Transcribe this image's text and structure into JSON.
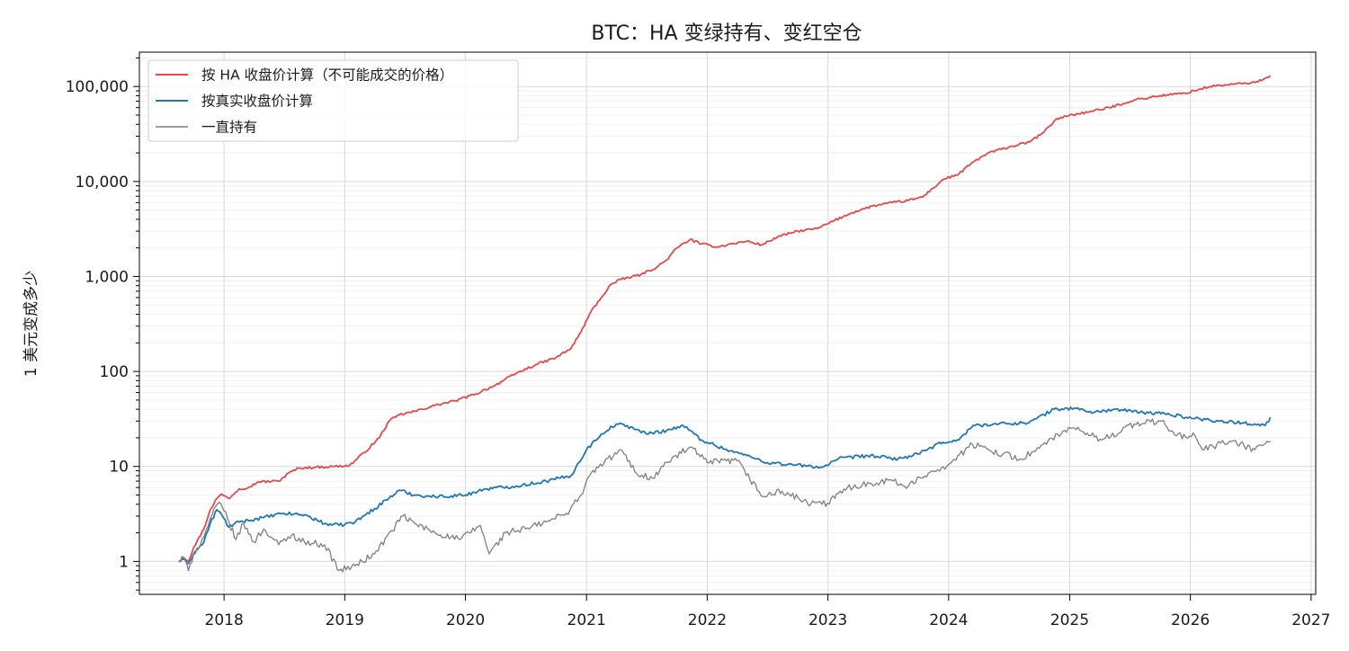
{
  "chart_data": {
    "type": "line",
    "title": "BTC：HA 变绿持有、变红空仓",
    "xlabel": "",
    "ylabel": "1 美元变成多少",
    "yscale": "log",
    "ylim": [
      0.45,
      230000
    ],
    "xlim": [
      "2017-04-20",
      "2027-01-15"
    ],
    "grid": true,
    "legend_position": "top-left",
    "x_ticks": [
      "2018",
      "2019",
      "2020",
      "2021",
      "2022",
      "2023",
      "2024",
      "2025",
      "2026",
      "2027"
    ],
    "y_ticks": [
      {
        "value": 1,
        "label": "1"
      },
      {
        "value": 10,
        "label": "10"
      },
      {
        "value": 100,
        "label": "100"
      },
      {
        "value": 1000,
        "label": "1,000"
      },
      {
        "value": 10000,
        "label": "10,000"
      },
      {
        "value": 100000,
        "label": "100,000"
      }
    ],
    "series": [
      {
        "name": "按 HA 收盘价计算（不可能成交的价格）",
        "color": "#e8474b",
        "points": [
          [
            "2017-08-17",
            1.0
          ],
          [
            "2017-09-01",
            1.1
          ],
          [
            "2017-09-15",
            1.0
          ],
          [
            "2017-10-01",
            1.4
          ],
          [
            "2017-11-01",
            2.2
          ],
          [
            "2017-11-20",
            3.5
          ],
          [
            "2017-12-10",
            4.6
          ],
          [
            "2017-12-25",
            5.1
          ],
          [
            "2018-01-15",
            4.6
          ],
          [
            "2018-02-15",
            5.8
          ],
          [
            "2018-03-15",
            6.0
          ],
          [
            "2018-04-15",
            6.9
          ],
          [
            "2018-06-15",
            7.0
          ],
          [
            "2018-07-15",
            8.5
          ],
          [
            "2018-08-15",
            9.6
          ],
          [
            "2018-10-01",
            9.8
          ],
          [
            "2018-12-01",
            10.0
          ],
          [
            "2019-01-15",
            10.2
          ],
          [
            "2019-03-01",
            14.0
          ],
          [
            "2019-04-15",
            20.0
          ],
          [
            "2019-05-15",
            30.0
          ],
          [
            "2019-06-15",
            35.0
          ],
          [
            "2019-08-01",
            38.0
          ],
          [
            "2019-10-01",
            44.0
          ],
          [
            "2019-12-01",
            49.0
          ],
          [
            "2020-02-01",
            58.0
          ],
          [
            "2020-04-01",
            72.0
          ],
          [
            "2020-06-01",
            95.0
          ],
          [
            "2020-08-01",
            118.0
          ],
          [
            "2020-10-01",
            140.0
          ],
          [
            "2020-11-15",
            175.0
          ],
          [
            "2020-12-15",
            260.0
          ],
          [
            "2021-01-15",
            430.0
          ],
          [
            "2021-02-15",
            600.0
          ],
          [
            "2021-03-15",
            820.0
          ],
          [
            "2021-04-15",
            930.0
          ],
          [
            "2021-06-15",
            1050.0
          ],
          [
            "2021-08-01",
            1250.0
          ],
          [
            "2021-09-01",
            1500.0
          ],
          [
            "2021-10-01",
            2000.0
          ],
          [
            "2021-11-10",
            2450.0
          ],
          [
            "2021-12-15",
            2200.0
          ],
          [
            "2022-02-01",
            2050.0
          ],
          [
            "2022-03-15",
            2200.0
          ],
          [
            "2022-05-01",
            2350.0
          ],
          [
            "2022-06-15",
            2150.0
          ],
          [
            "2022-08-01",
            2600.0
          ],
          [
            "2022-10-01",
            3000.0
          ],
          [
            "2022-12-01",
            3200.0
          ],
          [
            "2023-01-15",
            3800.0
          ],
          [
            "2023-03-15",
            4700.0
          ],
          [
            "2023-05-15",
            5500.0
          ],
          [
            "2023-07-15",
            6000.0
          ],
          [
            "2023-09-01",
            6300.0
          ],
          [
            "2023-10-15",
            6900.0
          ],
          [
            "2023-11-15",
            8500.0
          ],
          [
            "2023-12-15",
            10500.0
          ],
          [
            "2024-02-01",
            12000.0
          ],
          [
            "2024-03-15",
            16000.0
          ],
          [
            "2024-05-01",
            20000.0
          ],
          [
            "2024-07-01",
            23000.0
          ],
          [
            "2024-09-01",
            26000.0
          ],
          [
            "2024-10-15",
            33000.0
          ],
          [
            "2024-11-20",
            45000.0
          ],
          [
            "2025-01-01",
            50000.0
          ],
          [
            "2025-03-01",
            54000.0
          ],
          [
            "2025-05-01",
            60000.0
          ],
          [
            "2025-07-15",
            72000.0
          ],
          [
            "2025-10-01",
            80000.0
          ],
          [
            "2025-12-15",
            85000.0
          ],
          [
            "2026-03-01",
            100000.0
          ],
          [
            "2026-05-01",
            105000.0
          ],
          [
            "2026-07-15",
            110000.0
          ],
          [
            "2026-08-20",
            125000.0
          ],
          [
            "2026-08-31",
            130000.0
          ]
        ]
      },
      {
        "name": "按真实收盘价计算",
        "color": "#1f77b4",
        "points": [
          [
            "2017-08-17",
            1.0
          ],
          [
            "2017-09-01",
            1.05
          ],
          [
            "2017-09-15",
            0.95
          ],
          [
            "2017-10-01",
            1.2
          ],
          [
            "2017-11-01",
            1.6
          ],
          [
            "2017-11-20",
            2.5
          ],
          [
            "2017-12-10",
            3.5
          ],
          [
            "2017-12-25",
            3.1
          ],
          [
            "2018-01-15",
            2.3
          ],
          [
            "2018-02-15",
            2.6
          ],
          [
            "2018-03-15",
            2.7
          ],
          [
            "2018-05-01",
            2.9
          ],
          [
            "2018-07-01",
            3.2
          ],
          [
            "2018-09-01",
            3.1
          ],
          [
            "2018-11-01",
            2.5
          ],
          [
            "2018-12-15",
            2.4
          ],
          [
            "2019-02-01",
            2.6
          ],
          [
            "2019-04-01",
            3.6
          ],
          [
            "2019-06-15",
            5.6
          ],
          [
            "2019-08-01",
            5.0
          ],
          [
            "2019-10-01",
            4.8
          ],
          [
            "2020-01-01",
            5.0
          ],
          [
            "2020-03-01",
            5.8
          ],
          [
            "2020-06-01",
            6.2
          ],
          [
            "2020-09-01",
            7.0
          ],
          [
            "2020-11-15",
            8.0
          ],
          [
            "2021-01-01",
            15.0
          ],
          [
            "2021-02-15",
            22.0
          ],
          [
            "2021-04-01",
            28.0
          ],
          [
            "2021-05-15",
            26.0
          ],
          [
            "2021-07-01",
            22.0
          ],
          [
            "2021-09-01",
            24.0
          ],
          [
            "2021-10-20",
            27.0
          ],
          [
            "2021-12-15",
            19.0
          ],
          [
            "2022-03-01",
            15.0
          ],
          [
            "2022-05-01",
            13.0
          ],
          [
            "2022-07-01",
            11.0
          ],
          [
            "2022-09-01",
            10.5
          ],
          [
            "2022-12-15",
            9.8
          ],
          [
            "2023-02-01",
            12.0
          ],
          [
            "2023-05-01",
            13.0
          ],
          [
            "2023-08-01",
            12.0
          ],
          [
            "2023-10-01",
            13.5
          ],
          [
            "2023-12-15",
            18.0
          ],
          [
            "2024-02-01",
            19.0
          ],
          [
            "2024-03-15",
            27.0
          ],
          [
            "2024-06-01",
            28.0
          ],
          [
            "2024-09-01",
            29.0
          ],
          [
            "2024-11-15",
            40.0
          ],
          [
            "2025-01-15",
            41.0
          ],
          [
            "2025-03-15",
            37.0
          ],
          [
            "2025-05-15",
            40.0
          ],
          [
            "2025-08-01",
            37.0
          ],
          [
            "2025-10-15",
            36.0
          ],
          [
            "2026-01-15",
            32.0
          ],
          [
            "2026-04-01",
            30.0
          ],
          [
            "2026-07-15",
            28.0
          ],
          [
            "2026-08-15",
            27.0
          ],
          [
            "2026-08-31",
            33.0
          ]
        ]
      },
      {
        "name": "一直持有",
        "color": "#7f7f7f",
        "points": [
          [
            "2017-08-17",
            1.0
          ],
          [
            "2017-09-01",
            1.1
          ],
          [
            "2017-09-15",
            0.8
          ],
          [
            "2017-10-01",
            1.2
          ],
          [
            "2017-11-01",
            1.8
          ],
          [
            "2017-11-20",
            2.8
          ],
          [
            "2017-12-17",
            4.2
          ],
          [
            "2018-01-01",
            3.4
          ],
          [
            "2018-02-06",
            1.7
          ],
          [
            "2018-03-01",
            2.5
          ],
          [
            "2018-04-01",
            1.6
          ],
          [
            "2018-05-01",
            2.2
          ],
          [
            "2018-06-15",
            1.5
          ],
          [
            "2018-07-25",
            1.9
          ],
          [
            "2018-09-01",
            1.6
          ],
          [
            "2018-11-01",
            1.5
          ],
          [
            "2018-12-15",
            0.8
          ],
          [
            "2019-02-01",
            0.9
          ],
          [
            "2019-04-01",
            1.2
          ],
          [
            "2019-06-26",
            3.0
          ],
          [
            "2019-08-01",
            2.5
          ],
          [
            "2019-10-01",
            2.0
          ],
          [
            "2019-12-15",
            1.7
          ],
          [
            "2020-02-15",
            2.4
          ],
          [
            "2020-03-13",
            1.2
          ],
          [
            "2020-05-01",
            2.0
          ],
          [
            "2020-07-01",
            2.2
          ],
          [
            "2020-09-01",
            2.6
          ],
          [
            "2020-11-01",
            3.2
          ],
          [
            "2020-12-15",
            5.0
          ],
          [
            "2021-01-15",
            8.5
          ],
          [
            "2021-04-14",
            15.0
          ],
          [
            "2021-06-01",
            8.5
          ],
          [
            "2021-07-20",
            7.5
          ],
          [
            "2021-09-01",
            11.0
          ],
          [
            "2021-11-10",
            16.0
          ],
          [
            "2022-01-01",
            11.0
          ],
          [
            "2022-04-01",
            11.5
          ],
          [
            "2022-06-18",
            4.8
          ],
          [
            "2022-08-15",
            5.5
          ],
          [
            "2022-11-10",
            4.0
          ],
          [
            "2022-12-31",
            4.1
          ],
          [
            "2023-03-01",
            6.0
          ],
          [
            "2023-07-01",
            7.2
          ],
          [
            "2023-09-01",
            6.2
          ],
          [
            "2023-11-01",
            8.5
          ],
          [
            "2024-01-01",
            10.5
          ],
          [
            "2024-03-13",
            17.0
          ],
          [
            "2024-05-01",
            15.0
          ],
          [
            "2024-08-05",
            12.0
          ],
          [
            "2024-10-01",
            15.5
          ],
          [
            "2024-12-17",
            24.0
          ],
          [
            "2025-02-01",
            24.0
          ],
          [
            "2025-04-08",
            19.0
          ],
          [
            "2025-07-15",
            28.0
          ],
          [
            "2025-10-06",
            30.0
          ],
          [
            "2025-11-20",
            21.0
          ],
          [
            "2026-01-15",
            21.0
          ],
          [
            "2026-02-06",
            15.0
          ],
          [
            "2026-05-01",
            18.5
          ],
          [
            "2026-07-15",
            15.0
          ],
          [
            "2026-08-31",
            18.5
          ]
        ]
      }
    ]
  }
}
